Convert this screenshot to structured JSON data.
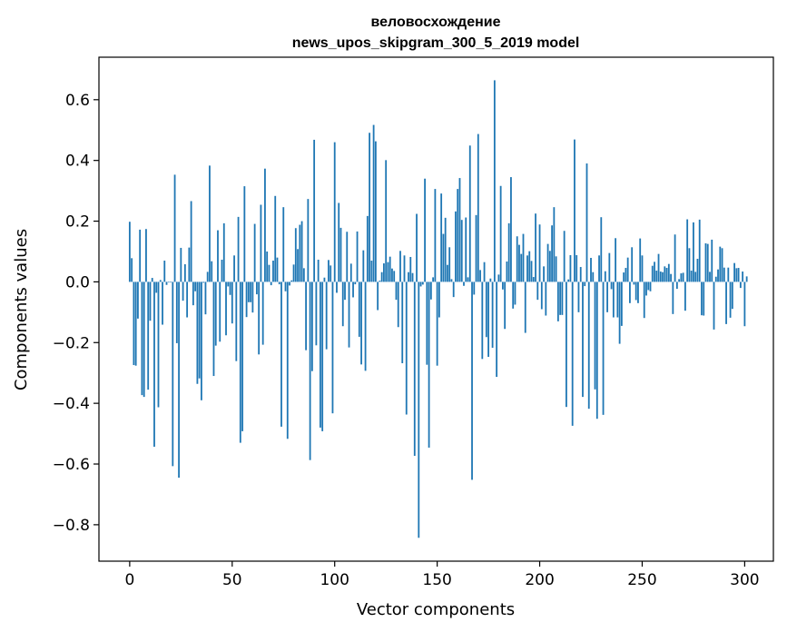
{
  "chart_data": {
    "type": "bar",
    "title_line1": "веловосхождение",
    "title_line2": "news_upos_skipgram_300_5_2019 model",
    "xlabel": "Vector components",
    "ylabel": "Components values",
    "xlim": [
      -15,
      314
    ],
    "ylim": [
      -0.92,
      0.74
    ],
    "xticks": [
      0,
      50,
      100,
      150,
      200,
      250,
      300
    ],
    "yticks": [
      -0.8,
      -0.6,
      -0.4,
      -0.2,
      0.0,
      0.2,
      0.4,
      0.6
    ],
    "ytick_labels": [
      "−0.8",
      "−0.6",
      "−0.4",
      "−0.2",
      "0.0",
      "0.2",
      "0.4",
      "0.6"
    ],
    "bar_color": "#1f77b4",
    "grid": false,
    "values": [
      0.198,
      0.078,
      -0.274,
      -0.276,
      -0.121,
      0.172,
      -0.373,
      -0.379,
      0.174,
      -0.355,
      -0.128,
      0.013,
      -0.543,
      -0.036,
      -0.413,
      0.006,
      -0.141,
      0.07,
      -0.01,
      -0.002,
      -0.002,
      -0.607,
      0.353,
      -0.202,
      -0.645,
      0.112,
      -0.062,
      0.058,
      -0.117,
      0.113,
      0.266,
      -0.077,
      -0.031,
      -0.336,
      -0.318,
      -0.39,
      -0.003,
      -0.107,
      0.033,
      0.383,
      0.068,
      -0.31,
      -0.21,
      0.17,
      -0.197,
      0.073,
      0.193,
      -0.176,
      -0.015,
      -0.043,
      -0.137,
      0.087,
      -0.261,
      0.214,
      -0.53,
      -0.492,
      0.315,
      -0.116,
      -0.067,
      -0.067,
      -0.101,
      0.191,
      -0.041,
      -0.239,
      0.254,
      -0.207,
      0.373,
      0.1,
      0.056,
      -0.011,
      0.07,
      0.283,
      0.08,
      -0.008,
      -0.477,
      0.246,
      -0.031,
      -0.517,
      -0.012,
      0.005,
      0.057,
      0.177,
      0.108,
      0.188,
      0.2,
      0.045,
      -0.225,
      0.273,
      -0.587,
      -0.294,
      0.468,
      -0.209,
      0.073,
      -0.48,
      -0.492,
      0.014,
      -0.222,
      0.072,
      0.054,
      -0.433,
      0.46,
      -0.036,
      0.26,
      0.178,
      -0.146,
      -0.059,
      0.165,
      -0.216,
      0.06,
      -0.051,
      -0.008,
      0.166,
      -0.181,
      -0.272,
      0.104,
      -0.293,
      0.217,
      0.491,
      0.07,
      0.517,
      0.463,
      -0.093,
      0.004,
      0.032,
      0.061,
      0.401,
      0.065,
      0.083,
      0.044,
      0.036,
      -0.059,
      -0.149,
      0.102,
      -0.268,
      0.087,
      -0.437,
      0.032,
      0.082,
      0.029,
      -0.573,
      0.224,
      -0.843,
      -0.015,
      -0.009,
      0.34,
      -0.273,
      -0.546,
      -0.058,
      0.015,
      0.306,
      -0.276,
      -0.117,
      0.291,
      0.158,
      0.211,
      0.056,
      0.114,
      0.009,
      -0.05,
      0.232,
      0.306,
      0.342,
      0.204,
      -0.013,
      0.212,
      0.015,
      0.449,
      -0.652,
      -0.042,
      0.22,
      0.487,
      0.039,
      -0.254,
      0.065,
      -0.182,
      -0.247,
      0.011,
      -0.217,
      0.664,
      -0.313,
      0.024,
      0.316,
      -0.025,
      -0.155,
      0.067,
      0.193,
      0.345,
      -0.088,
      -0.075,
      0.15,
      0.122,
      0.092,
      0.158,
      -0.168,
      0.087,
      0.101,
      0.069,
      0.016,
      0.225,
      -0.059,
      0.189,
      -0.09,
      0.051,
      -0.111,
      0.125,
      0.102,
      0.186,
      0.246,
      0.084,
      -0.13,
      -0.109,
      -0.109,
      0.168,
      -0.412,
      0.008,
      0.088,
      -0.474,
      0.469,
      0.088,
      -0.1,
      0.049,
      -0.379,
      -0.014,
      0.39,
      -0.418,
      0.079,
      0.032,
      -0.354,
      -0.451,
      0.087,
      0.213,
      -0.438,
      0.035,
      -0.1,
      0.095,
      -0.024,
      -0.117,
      0.144,
      -0.117,
      -0.204,
      -0.145,
      0.031,
      0.046,
      0.08,
      -0.07,
      0.114,
      -0.009,
      -0.06,
      -0.07,
      0.143,
      0.087,
      -0.119,
      -0.045,
      -0.027,
      -0.031,
      0.053,
      0.066,
      0.037,
      0.092,
      0.034,
      0.032,
      0.051,
      0.046,
      0.059,
      0.026,
      -0.106,
      0.156,
      -0.023,
      0.009,
      0.028,
      0.03,
      -0.095,
      0.206,
      0.111,
      0.037,
      0.196,
      0.033,
      0.076,
      0.205,
      -0.11,
      -0.111,
      0.127,
      0.125,
      0.033,
      0.139,
      -0.157,
      0.017,
      0.041,
      0.116,
      0.111,
      0.047,
      -0.139,
      0.047,
      -0.118,
      -0.089,
      0.062,
      0.045,
      0.046,
      -0.02,
      0.034,
      -0.146,
      0.018
    ]
  }
}
